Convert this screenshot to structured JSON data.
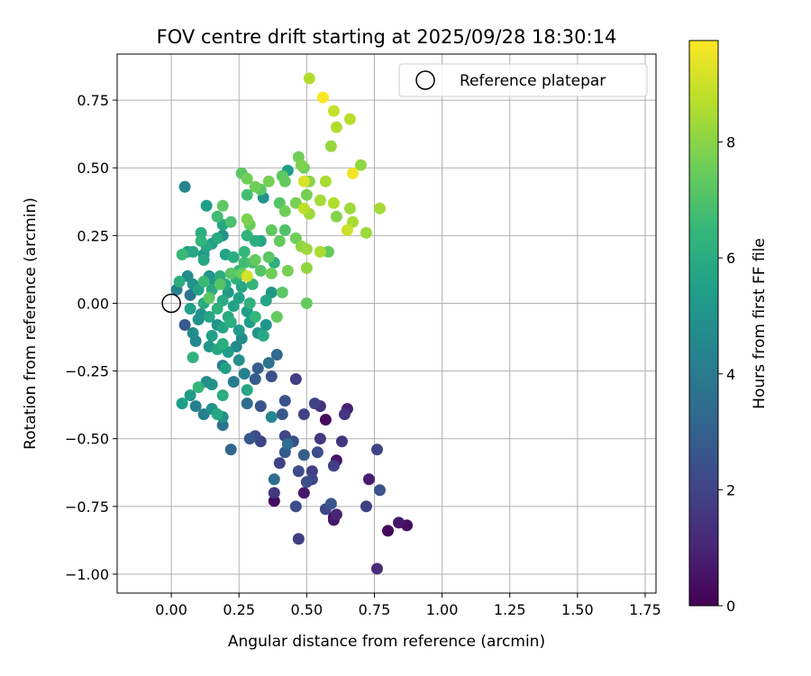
{
  "chart_data": {
    "type": "scatter",
    "title": "FOV centre drift starting at 2025/09/28 18:30:14",
    "xlabel": "Angular distance from reference (arcmin)",
    "ylabel": "Rotation from reference (arcmin)",
    "xlim": [
      -0.2,
      1.79
    ],
    "ylim": [
      -1.07,
      0.92
    ],
    "x_ticks": [
      0.0,
      0.25,
      0.5,
      0.75,
      1.0,
      1.25,
      1.5,
      1.75
    ],
    "x_tick_labels": [
      "0.00",
      "0.25",
      "0.50",
      "0.75",
      "1.00",
      "1.25",
      "1.50",
      "1.75"
    ],
    "y_ticks": [
      -1.0,
      -0.75,
      -0.5,
      -0.25,
      0.0,
      0.25,
      0.5,
      0.75
    ],
    "y_tick_labels": [
      "−1.00",
      "−0.75",
      "−0.50",
      "−0.25",
      "0.00",
      "0.25",
      "0.50",
      "0.75"
    ],
    "grid": true,
    "legend": {
      "position": "top-right",
      "entries": [
        "Reference platepar"
      ]
    },
    "reference_point": {
      "x": 0.0,
      "y": 0.0,
      "label": "Reference platepar"
    },
    "colorbar": {
      "label": "Hours from first FF file",
      "min": 0,
      "max": 9.75,
      "ticks": [
        0,
        2,
        4,
        6,
        8
      ],
      "tick_labels": [
        "0",
        "2",
        "4",
        "6",
        "8"
      ],
      "colormap": "viridis",
      "stops": [
        "#440154",
        "#482878",
        "#3e4989",
        "#31688e",
        "#26828e",
        "#1f9e89",
        "#35b779",
        "#6ece58",
        "#b5de2b",
        "#fde725"
      ]
    },
    "points": [
      {
        "x": 0.51,
        "y": 0.83,
        "c": 8.6
      },
      {
        "x": 0.56,
        "y": 0.76,
        "c": 9.7
      },
      {
        "x": 0.6,
        "y": 0.71,
        "c": 8.9
      },
      {
        "x": 0.66,
        "y": 0.68,
        "c": 8.7
      },
      {
        "x": 0.61,
        "y": 0.65,
        "c": 8.6
      },
      {
        "x": 0.59,
        "y": 0.58,
        "c": 8.2
      },
      {
        "x": 0.47,
        "y": 0.54,
        "c": 7.6
      },
      {
        "x": 0.48,
        "y": 0.51,
        "c": 7.8
      },
      {
        "x": 0.49,
        "y": 0.5,
        "c": 7.6
      },
      {
        "x": 0.7,
        "y": 0.51,
        "c": 8.1
      },
      {
        "x": 0.67,
        "y": 0.48,
        "c": 9.6
      },
      {
        "x": 0.43,
        "y": 0.49,
        "c": 5.4
      },
      {
        "x": 0.41,
        "y": 0.47,
        "c": 7.2
      },
      {
        "x": 0.26,
        "y": 0.48,
        "c": 7.2
      },
      {
        "x": 0.28,
        "y": 0.46,
        "c": 7.6
      },
      {
        "x": 0.42,
        "y": 0.45,
        "c": 7.4
      },
      {
        "x": 0.36,
        "y": 0.45,
        "c": 7.7
      },
      {
        "x": 0.51,
        "y": 0.45,
        "c": 8.0
      },
      {
        "x": 0.49,
        "y": 0.45,
        "c": 9.2
      },
      {
        "x": 0.57,
        "y": 0.45,
        "c": 8.5
      },
      {
        "x": 0.31,
        "y": 0.43,
        "c": 7.6
      },
      {
        "x": 0.33,
        "y": 0.42,
        "c": 7.2
      },
      {
        "x": 0.05,
        "y": 0.43,
        "c": 4.4
      },
      {
        "x": 0.5,
        "y": 0.4,
        "c": 7.7
      },
      {
        "x": 0.28,
        "y": 0.4,
        "c": 6.8
      },
      {
        "x": 0.34,
        "y": 0.39,
        "c": 5.0
      },
      {
        "x": 0.55,
        "y": 0.38,
        "c": 8.4
      },
      {
        "x": 0.46,
        "y": 0.37,
        "c": 7.7
      },
      {
        "x": 0.4,
        "y": 0.37,
        "c": 7.1
      },
      {
        "x": 0.6,
        "y": 0.37,
        "c": 8.6
      },
      {
        "x": 0.77,
        "y": 0.35,
        "c": 8.4
      },
      {
        "x": 0.66,
        "y": 0.35,
        "c": 8.3
      },
      {
        "x": 0.13,
        "y": 0.36,
        "c": 5.4
      },
      {
        "x": 0.19,
        "y": 0.36,
        "c": 7.3
      },
      {
        "x": 0.49,
        "y": 0.35,
        "c": 8.8
      },
      {
        "x": 0.51,
        "y": 0.33,
        "c": 8.3
      },
      {
        "x": 0.42,
        "y": 0.34,
        "c": 7.6
      },
      {
        "x": 0.17,
        "y": 0.32,
        "c": 6.7
      },
      {
        "x": 0.61,
        "y": 0.32,
        "c": 7.9
      },
      {
        "x": 0.67,
        "y": 0.3,
        "c": 8.5
      },
      {
        "x": 0.28,
        "y": 0.31,
        "c": 7.8
      },
      {
        "x": 0.22,
        "y": 0.3,
        "c": 6.9
      },
      {
        "x": 0.29,
        "y": 0.29,
        "c": 7.5
      },
      {
        "x": 0.19,
        "y": 0.29,
        "c": 5.8
      },
      {
        "x": 0.65,
        "y": 0.27,
        "c": 9.0
      },
      {
        "x": 0.72,
        "y": 0.26,
        "c": 8.3
      },
      {
        "x": 0.37,
        "y": 0.27,
        "c": 7.3
      },
      {
        "x": 0.42,
        "y": 0.27,
        "c": 7.0
      },
      {
        "x": 0.11,
        "y": 0.26,
        "c": 6.1
      },
      {
        "x": 0.19,
        "y": 0.25,
        "c": 4.9
      },
      {
        "x": 0.28,
        "y": 0.25,
        "c": 6.3
      },
      {
        "x": 0.46,
        "y": 0.24,
        "c": 7.6
      },
      {
        "x": 0.17,
        "y": 0.24,
        "c": 5.9
      },
      {
        "x": 0.11,
        "y": 0.23,
        "c": 6.4
      },
      {
        "x": 0.31,
        "y": 0.23,
        "c": 6.1
      },
      {
        "x": 0.33,
        "y": 0.23,
        "c": 5.7
      },
      {
        "x": 0.4,
        "y": 0.23,
        "c": 7.4
      },
      {
        "x": 0.15,
        "y": 0.22,
        "c": 5.5
      },
      {
        "x": 0.13,
        "y": 0.21,
        "c": 5.8
      },
      {
        "x": 0.48,
        "y": 0.21,
        "c": 8.1
      },
      {
        "x": 0.5,
        "y": 0.2,
        "c": 8.3
      },
      {
        "x": 0.06,
        "y": 0.19,
        "c": 5.6
      },
      {
        "x": 0.08,
        "y": 0.19,
        "c": 5.8
      },
      {
        "x": 0.27,
        "y": 0.19,
        "c": 6.4
      },
      {
        "x": 0.55,
        "y": 0.19,
        "c": 8.5
      },
      {
        "x": 0.58,
        "y": 0.19,
        "c": 7.4
      },
      {
        "x": 0.12,
        "y": 0.18,
        "c": 5.3
      },
      {
        "x": 0.04,
        "y": 0.18,
        "c": 6.6
      },
      {
        "x": 0.2,
        "y": 0.18,
        "c": 5.6
      },
      {
        "x": 0.23,
        "y": 0.17,
        "c": 6.1
      },
      {
        "x": 0.31,
        "y": 0.16,
        "c": 7.4
      },
      {
        "x": 0.36,
        "y": 0.17,
        "c": 7.2
      },
      {
        "x": 0.12,
        "y": 0.16,
        "c": 5.8
      },
      {
        "x": 0.27,
        "y": 0.15,
        "c": 6.7
      },
      {
        "x": 0.3,
        "y": 0.15,
        "c": 6.9
      },
      {
        "x": 0.38,
        "y": 0.15,
        "c": 6.1
      },
      {
        "x": 0.5,
        "y": 0.13,
        "c": 8.1
      },
      {
        "x": 0.43,
        "y": 0.12,
        "c": 7.7
      },
      {
        "x": 0.25,
        "y": 0.12,
        "c": 6.5
      },
      {
        "x": 0.26,
        "y": 0.11,
        "c": 7.5
      },
      {
        "x": 0.33,
        "y": 0.12,
        "c": 7.1
      },
      {
        "x": 0.22,
        "y": 0.11,
        "c": 7.2
      },
      {
        "x": 0.06,
        "y": 0.1,
        "c": 4.8
      },
      {
        "x": 0.14,
        "y": 0.1,
        "c": 5.1
      },
      {
        "x": 0.18,
        "y": 0.1,
        "c": 6.1
      },
      {
        "x": 0.28,
        "y": 0.1,
        "c": 9.1
      },
      {
        "x": 0.37,
        "y": 0.11,
        "c": 7.6
      },
      {
        "x": 0.12,
        "y": 0.08,
        "c": 6.6
      },
      {
        "x": 0.03,
        "y": 0.08,
        "c": 6.1
      },
      {
        "x": 0.16,
        "y": 0.08,
        "c": 5.2
      },
      {
        "x": 0.24,
        "y": 0.09,
        "c": 6.2
      },
      {
        "x": 0.2,
        "y": 0.07,
        "c": 5.9
      },
      {
        "x": 0.08,
        "y": 0.07,
        "c": 5.0
      },
      {
        "x": 0.18,
        "y": 0.07,
        "c": 7.1
      },
      {
        "x": 0.3,
        "y": 0.07,
        "c": 6.4
      },
      {
        "x": 0.26,
        "y": 0.06,
        "c": 5.8
      },
      {
        "x": 0.02,
        "y": 0.05,
        "c": 4.3
      },
      {
        "x": 0.1,
        "y": 0.05,
        "c": 5.6
      },
      {
        "x": 0.15,
        "y": 0.05,
        "c": 5.9
      },
      {
        "x": 0.21,
        "y": 0.04,
        "c": 5.3
      },
      {
        "x": 0.37,
        "y": 0.04,
        "c": 5.1
      },
      {
        "x": 0.41,
        "y": 0.04,
        "c": 7.2
      },
      {
        "x": 0.07,
        "y": 0.03,
        "c": 3.8
      },
      {
        "x": 0.14,
        "y": 0.02,
        "c": 7.2
      },
      {
        "x": 0.25,
        "y": 0.02,
        "c": 5.6
      },
      {
        "x": 0.19,
        "y": 0.01,
        "c": 5.9
      },
      {
        "x": 0.29,
        "y": 0.0,
        "c": 6.2
      },
      {
        "x": 0.35,
        "y": 0.01,
        "c": 5.7
      },
      {
        "x": 0.5,
        "y": 0.0,
        "c": 7.4
      },
      {
        "x": 0.12,
        "y": 0.0,
        "c": 6.0
      },
      {
        "x": 0.23,
        "y": -0.01,
        "c": 5.6
      },
      {
        "x": 0.07,
        "y": -0.02,
        "c": 5.5
      },
      {
        "x": 0.17,
        "y": -0.02,
        "c": 6.2
      },
      {
        "x": 0.28,
        "y": -0.03,
        "c": 5.4
      },
      {
        "x": 0.11,
        "y": -0.04,
        "c": 5.0
      },
      {
        "x": 0.14,
        "y": -0.05,
        "c": 5.7
      },
      {
        "x": 0.21,
        "y": -0.05,
        "c": 5.9
      },
      {
        "x": 0.31,
        "y": -0.05,
        "c": 6.5
      },
      {
        "x": 0.39,
        "y": -0.05,
        "c": 7.4
      },
      {
        "x": 0.1,
        "y": -0.06,
        "c": 4.9
      },
      {
        "x": 0.22,
        "y": -0.07,
        "c": 6.1
      },
      {
        "x": 0.29,
        "y": -0.07,
        "c": 5.4
      },
      {
        "x": 0.05,
        "y": -0.08,
        "c": 2.8
      },
      {
        "x": 0.17,
        "y": -0.08,
        "c": 5.0
      },
      {
        "x": 0.35,
        "y": -0.08,
        "c": 5.1
      },
      {
        "x": 0.19,
        "y": -0.09,
        "c": 5.7
      },
      {
        "x": 0.25,
        "y": -0.1,
        "c": 5.3
      },
      {
        "x": 0.08,
        "y": -0.11,
        "c": 4.7
      },
      {
        "x": 0.32,
        "y": -0.11,
        "c": 5.1
      },
      {
        "x": 0.15,
        "y": -0.12,
        "c": 5.5
      },
      {
        "x": 0.26,
        "y": -0.13,
        "c": 4.7
      },
      {
        "x": 0.34,
        "y": -0.12,
        "c": 5.9
      },
      {
        "x": 0.09,
        "y": -0.14,
        "c": 4.6
      },
      {
        "x": 0.19,
        "y": -0.15,
        "c": 6.1
      },
      {
        "x": 0.24,
        "y": -0.16,
        "c": 4.6
      },
      {
        "x": 0.14,
        "y": -0.16,
        "c": 5.1
      },
      {
        "x": 0.17,
        "y": -0.17,
        "c": 5.8
      },
      {
        "x": 0.21,
        "y": -0.18,
        "c": 5.4
      },
      {
        "x": 0.08,
        "y": -0.2,
        "c": 6.3
      },
      {
        "x": 0.25,
        "y": -0.21,
        "c": 4.8
      },
      {
        "x": 0.19,
        "y": -0.23,
        "c": 4.2
      },
      {
        "x": 0.36,
        "y": -0.22,
        "c": 3.7
      },
      {
        "x": 0.39,
        "y": -0.19,
        "c": 3.3
      },
      {
        "x": 0.2,
        "y": -0.24,
        "c": 5.5
      },
      {
        "x": 0.32,
        "y": -0.24,
        "c": 2.9
      },
      {
        "x": 0.27,
        "y": -0.26,
        "c": 4.3
      },
      {
        "x": 0.37,
        "y": -0.27,
        "c": 2.4
      },
      {
        "x": 0.46,
        "y": -0.28,
        "c": 1.8
      },
      {
        "x": 0.13,
        "y": -0.29,
        "c": 4.7
      },
      {
        "x": 0.23,
        "y": -0.29,
        "c": 4.1
      },
      {
        "x": 0.31,
        "y": -0.28,
        "c": 2.9
      },
      {
        "x": 0.15,
        "y": -0.3,
        "c": 5.0
      },
      {
        "x": 0.1,
        "y": -0.31,
        "c": 6.4
      },
      {
        "x": 0.28,
        "y": -0.32,
        "c": 5.8
      },
      {
        "x": 0.07,
        "y": -0.34,
        "c": 5.3
      },
      {
        "x": 0.19,
        "y": -0.34,
        "c": 6.0
      },
      {
        "x": 0.04,
        "y": -0.37,
        "c": 5.4
      },
      {
        "x": 0.42,
        "y": -0.36,
        "c": 2.5
      },
      {
        "x": 0.28,
        "y": -0.37,
        "c": 3.5
      },
      {
        "x": 0.33,
        "y": -0.38,
        "c": 2.6
      },
      {
        "x": 0.09,
        "y": -0.38,
        "c": 4.3
      },
      {
        "x": 0.15,
        "y": -0.39,
        "c": 4.9
      },
      {
        "x": 0.53,
        "y": -0.37,
        "c": 2.0
      },
      {
        "x": 0.55,
        "y": -0.38,
        "c": 1.4
      },
      {
        "x": 0.65,
        "y": -0.39,
        "c": 0.9
      },
      {
        "x": 0.12,
        "y": -0.41,
        "c": 4.3
      },
      {
        "x": 0.17,
        "y": -0.41,
        "c": 5.8
      },
      {
        "x": 0.19,
        "y": -0.42,
        "c": 4.9
      },
      {
        "x": 0.37,
        "y": -0.42,
        "c": 4.5
      },
      {
        "x": 0.41,
        "y": -0.41,
        "c": 2.7
      },
      {
        "x": 0.49,
        "y": -0.41,
        "c": 2.0
      },
      {
        "x": 0.64,
        "y": -0.41,
        "c": 1.5
      },
      {
        "x": 0.57,
        "y": -0.43,
        "c": 0.3
      },
      {
        "x": 0.19,
        "y": -0.45,
        "c": 3.7
      },
      {
        "x": 0.31,
        "y": -0.49,
        "c": 2.3
      },
      {
        "x": 0.29,
        "y": -0.5,
        "c": 2.7
      },
      {
        "x": 0.33,
        "y": -0.51,
        "c": 2.0
      },
      {
        "x": 0.42,
        "y": -0.49,
        "c": 2.1
      },
      {
        "x": 0.45,
        "y": -0.51,
        "c": 2.3
      },
      {
        "x": 0.55,
        "y": -0.5,
        "c": 1.6
      },
      {
        "x": 0.63,
        "y": -0.51,
        "c": 1.5
      },
      {
        "x": 0.43,
        "y": -0.52,
        "c": 3.5
      },
      {
        "x": 0.22,
        "y": -0.54,
        "c": 3.2
      },
      {
        "x": 0.54,
        "y": -0.55,
        "c": 2.3
      },
      {
        "x": 0.42,
        "y": -0.55,
        "c": 2.8
      },
      {
        "x": 0.76,
        "y": -0.54,
        "c": 2.0
      },
      {
        "x": 0.49,
        "y": -0.56,
        "c": 2.9
      },
      {
        "x": 0.61,
        "y": -0.58,
        "c": 0.5
      },
      {
        "x": 0.4,
        "y": -0.59,
        "c": 1.9
      },
      {
        "x": 0.6,
        "y": -0.6,
        "c": 1.9
      },
      {
        "x": 0.47,
        "y": -0.62,
        "c": 2.3
      },
      {
        "x": 0.52,
        "y": -0.62,
        "c": 1.8
      },
      {
        "x": 0.38,
        "y": -0.65,
        "c": 3.5
      },
      {
        "x": 0.5,
        "y": -0.66,
        "c": 2.3
      },
      {
        "x": 0.73,
        "y": -0.65,
        "c": 0.8
      },
      {
        "x": 0.52,
        "y": -0.65,
        "c": 2.1
      },
      {
        "x": 0.38,
        "y": -0.7,
        "c": 1.5
      },
      {
        "x": 0.49,
        "y": -0.7,
        "c": 0.7
      },
      {
        "x": 0.77,
        "y": -0.69,
        "c": 2.5
      },
      {
        "x": 0.38,
        "y": -0.73,
        "c": 0.3
      },
      {
        "x": 0.59,
        "y": -0.74,
        "c": 2.6
      },
      {
        "x": 0.46,
        "y": -0.75,
        "c": 2.3
      },
      {
        "x": 0.57,
        "y": -0.76,
        "c": 2.1
      },
      {
        "x": 0.72,
        "y": -0.75,
        "c": 1.9
      },
      {
        "x": 0.61,
        "y": -0.78,
        "c": 1.0
      },
      {
        "x": 0.6,
        "y": -0.79,
        "c": 0.3
      },
      {
        "x": 0.6,
        "y": -0.8,
        "c": 0.6
      },
      {
        "x": 0.84,
        "y": -0.81,
        "c": 0.6
      },
      {
        "x": 0.87,
        "y": -0.82,
        "c": 0.4
      },
      {
        "x": 0.8,
        "y": -0.84,
        "c": 0.2
      },
      {
        "x": 0.47,
        "y": -0.87,
        "c": 1.8
      },
      {
        "x": 0.76,
        "y": -0.98,
        "c": 1.2
      }
    ]
  }
}
